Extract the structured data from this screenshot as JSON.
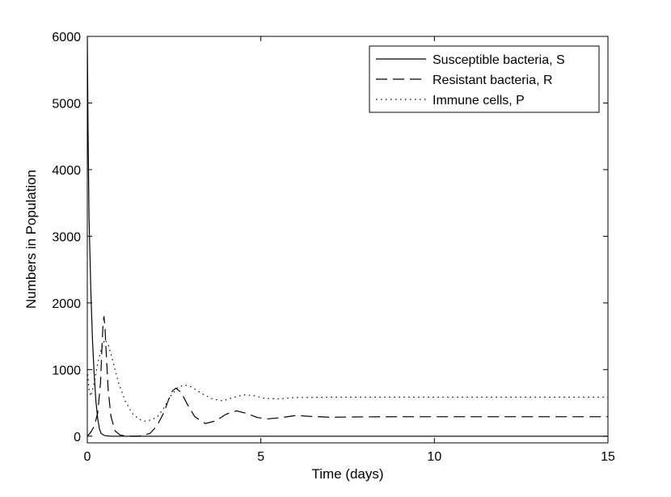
{
  "chart_data": {
    "type": "line",
    "title": "",
    "xlabel": "Time (days)",
    "ylabel": "Numbers in Population",
    "xlim": [
      0,
      15
    ],
    "ylim": [
      -100,
      6000
    ],
    "x_ticks": [
      0,
      5,
      10,
      15
    ],
    "y_ticks": [
      0,
      1000,
      2000,
      3000,
      4000,
      5000,
      6000
    ],
    "grid": false,
    "legend_position": "top-right",
    "series": [
      {
        "name": "Susceptible bacteria, S",
        "style": "solid",
        "color": "#000000",
        "points": [
          [
            0,
            6000
          ],
          [
            0.02,
            4600
          ],
          [
            0.05,
            3300
          ],
          [
            0.1,
            2200
          ],
          [
            0.15,
            1450
          ],
          [
            0.2,
            900
          ],
          [
            0.25,
            520
          ],
          [
            0.3,
            260
          ],
          [
            0.35,
            110
          ],
          [
            0.4,
            40
          ],
          [
            0.5,
            8
          ],
          [
            0.7,
            0
          ],
          [
            2,
            0
          ],
          [
            15,
            0
          ]
        ]
      },
      {
        "name": "Resistant bacteria, R",
        "style": "dashed",
        "color": "#000000",
        "points": [
          [
            0,
            0
          ],
          [
            0.1,
            60
          ],
          [
            0.2,
            150
          ],
          [
            0.3,
            350
          ],
          [
            0.38,
            800
          ],
          [
            0.42,
            1300
          ],
          [
            0.45,
            1650
          ],
          [
            0.48,
            1800
          ],
          [
            0.51,
            1620
          ],
          [
            0.55,
            1200
          ],
          [
            0.6,
            700
          ],
          [
            0.68,
            300
          ],
          [
            0.8,
            80
          ],
          [
            0.95,
            15
          ],
          [
            1.2,
            0
          ],
          [
            1.5,
            3
          ],
          [
            1.8,
            40
          ],
          [
            2.0,
            150
          ],
          [
            2.2,
            350
          ],
          [
            2.35,
            560
          ],
          [
            2.45,
            680
          ],
          [
            2.55,
            720
          ],
          [
            2.7,
            660
          ],
          [
            2.9,
            460
          ],
          [
            3.1,
            290
          ],
          [
            3.4,
            190
          ],
          [
            3.7,
            230
          ],
          [
            4.0,
            330
          ],
          [
            4.3,
            380
          ],
          [
            4.6,
            340
          ],
          [
            4.9,
            280
          ],
          [
            5.2,
            260
          ],
          [
            5.6,
            280
          ],
          [
            6.0,
            310
          ],
          [
            6.5,
            295
          ],
          [
            7.0,
            285
          ],
          [
            8.0,
            290
          ],
          [
            9.0,
            292
          ],
          [
            10,
            292
          ],
          [
            12,
            292
          ],
          [
            15,
            292
          ]
        ]
      },
      {
        "name": "Immune cells, P",
        "style": "dotted",
        "color": "#000000",
        "points": [
          [
            0,
            1000
          ],
          [
            0.05,
            700
          ],
          [
            0.1,
            600
          ],
          [
            0.2,
            800
          ],
          [
            0.3,
            1100
          ],
          [
            0.4,
            1300
          ],
          [
            0.5,
            1450
          ],
          [
            0.6,
            1380
          ],
          [
            0.75,
            1100
          ],
          [
            0.9,
            800
          ],
          [
            1.1,
            520
          ],
          [
            1.3,
            340
          ],
          [
            1.5,
            250
          ],
          [
            1.7,
            220
          ],
          [
            2.0,
            280
          ],
          [
            2.2,
            420
          ],
          [
            2.4,
            600
          ],
          [
            2.6,
            730
          ],
          [
            2.8,
            770
          ],
          [
            3.0,
            740
          ],
          [
            3.3,
            640
          ],
          [
            3.6,
            560
          ],
          [
            3.9,
            530
          ],
          [
            4.2,
            580
          ],
          [
            4.5,
            620
          ],
          [
            4.8,
            610
          ],
          [
            5.1,
            570
          ],
          [
            5.5,
            560
          ],
          [
            6.0,
            580
          ],
          [
            7,
            585
          ],
          [
            8,
            585
          ],
          [
            10,
            585
          ],
          [
            12,
            585
          ],
          [
            15,
            585
          ]
        ]
      }
    ]
  }
}
